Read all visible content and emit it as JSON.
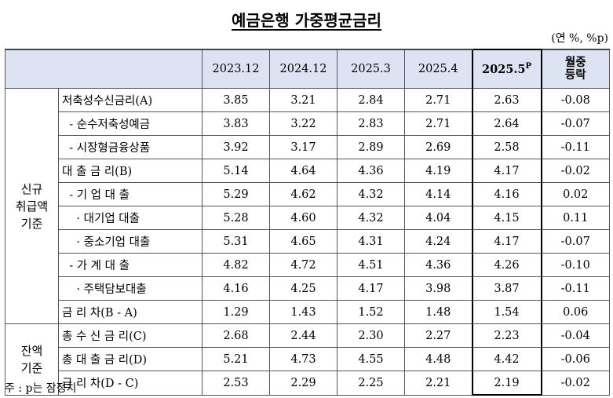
{
  "title": "예금은행 가중평균금리",
  "unit": "(연 %, %p)",
  "header": {
    "cols": [
      "2023.12",
      "2024.12",
      "2025.3",
      "2025.4"
    ],
    "highlight_label": "2025.5",
    "highlight_sup": "P",
    "change_line1": "월중",
    "change_line2": "등락"
  },
  "groups": {
    "new": [
      "신규",
      "취급액",
      "기준"
    ],
    "balance": [
      "잔액",
      "기준"
    ]
  },
  "rows": [
    {
      "label": "저축성수신금리(A)",
      "v": [
        "3.85",
        "3.21",
        "2.84",
        "2.71",
        "2.63",
        "-0.08"
      ]
    },
    {
      "label": "  - 순수저축성예금",
      "v": [
        "3.83",
        "3.22",
        "2.83",
        "2.71",
        "2.64",
        "-0.07"
      ]
    },
    {
      "label": "  - 시장형금융상품",
      "v": [
        "3.92",
        "3.17",
        "2.89",
        "2.69",
        "2.58",
        "-0.11"
      ]
    },
    {
      "label": "대 출 금 리(B)",
      "v": [
        "5.14",
        "4.64",
        "4.36",
        "4.19",
        "4.17",
        "-0.02"
      ]
    },
    {
      "label": "  - 기 업 대 출",
      "v": [
        "5.29",
        "4.62",
        "4.32",
        "4.14",
        "4.16",
        "0.02"
      ]
    },
    {
      "label": "    · 대기업 대출",
      "v": [
        "5.28",
        "4.60",
        "4.32",
        "4.04",
        "4.15",
        "0.11"
      ]
    },
    {
      "label": "    · 중소기업 대출",
      "v": [
        "5.31",
        "4.65",
        "4.31",
        "4.24",
        "4.17",
        "-0.07"
      ]
    },
    {
      "label": "  - 가 계 대 출",
      "v": [
        "4.82",
        "4.72",
        "4.51",
        "4.36",
        "4.26",
        "-0.10"
      ]
    },
    {
      "label": "    · 주택담보대출",
      "v": [
        "4.16",
        "4.25",
        "4.17",
        "3.98",
        "3.87",
        "-0.11"
      ]
    },
    {
      "label": "금 리 차(B - A)",
      "v": [
        "1.29",
        "1.43",
        "1.52",
        "1.48",
        "1.54",
        "0.06"
      ]
    },
    {
      "label": "총 수 신 금 리(C)",
      "v": [
        "2.68",
        "2.44",
        "2.30",
        "2.27",
        "2.23",
        "-0.04"
      ]
    },
    {
      "label": "총 대 출 금 리(D)",
      "v": [
        "5.21",
        "4.73",
        "4.55",
        "4.48",
        "4.42",
        "-0.06"
      ]
    },
    {
      "label": "금 리 차(D - C)",
      "v": [
        "2.53",
        "2.29",
        "2.25",
        "2.21",
        "2.19",
        "-0.02"
      ]
    }
  ],
  "note": "주 : p는 잠정치"
}
